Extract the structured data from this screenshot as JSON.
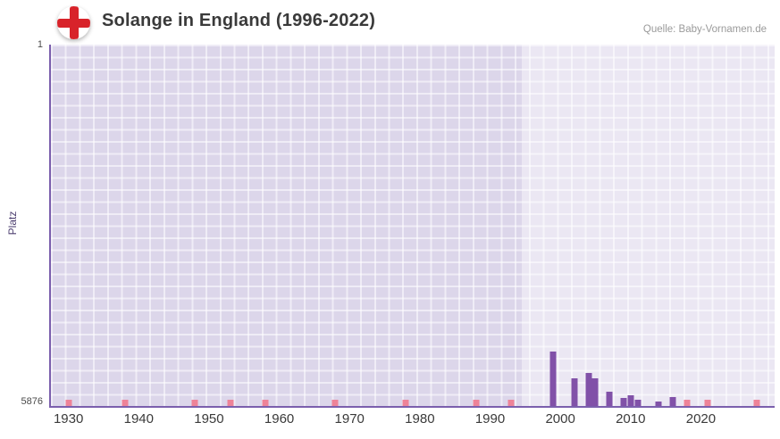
{
  "header": {
    "title": "Solange in England (1996-2022)",
    "source": "Quelle: Baby-Vornamen.de"
  },
  "colors": {
    "bar": "#8151a8",
    "unranked_marker": "#ee8398",
    "axis": "#7b5fad",
    "plot_background": "#dcd6ea",
    "highlight_background": "#ebe7f5",
    "flag_cross": "#d8232a"
  },
  "chart_data": {
    "type": "bar",
    "title": "Solange in England (1996-2022)",
    "xlabel": "",
    "ylabel": "Platz",
    "y_axis": {
      "top_label": "1",
      "bottom_label": "5876",
      "min": 1,
      "max": 5876,
      "inverted": true
    },
    "x_axis": {
      "min": 1927.5,
      "max": 2030.5,
      "ticks": [
        1930,
        1940,
        1950,
        1960,
        1970,
        1980,
        1990,
        2000,
        2010,
        2020
      ]
    },
    "highlight_region": {
      "from": 1994.5,
      "to": 2030.5
    },
    "grid": true,
    "legend": false,
    "series": [
      {
        "name": "Platz",
        "points": [
          {
            "year": 1999,
            "rank": 4990
          },
          {
            "year": 2002,
            "rank": 5430
          },
          {
            "year": 2004,
            "rank": 5340
          },
          {
            "year": 2005,
            "rank": 5430
          },
          {
            "year": 2007,
            "rank": 5650
          },
          {
            "year": 2009,
            "rank": 5740
          },
          {
            "year": 2010,
            "rank": 5700
          },
          {
            "year": 2011,
            "rank": 5770
          },
          {
            "year": 2014,
            "rank": 5800
          },
          {
            "year": 2016,
            "rank": 5730
          }
        ]
      }
    ],
    "unranked_markers": {
      "years": [
        1930,
        1938,
        1948,
        1953,
        1958,
        1968,
        1978,
        1988,
        1993,
        2018,
        2021,
        2028
      ]
    }
  }
}
